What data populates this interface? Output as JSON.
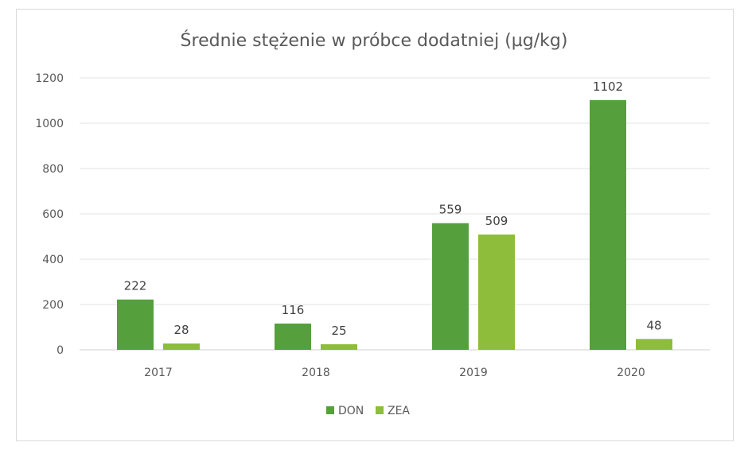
{
  "chart_data": {
    "type": "bar",
    "title": "Średnie stężenie w próbce dodatniej (µg/kg)",
    "categories": [
      "2017",
      "2018",
      "2019",
      "2020"
    ],
    "series": [
      {
        "name": "DON",
        "values": [
          222,
          116,
          559,
          1102
        ],
        "color": "#55a03c"
      },
      {
        "name": "ZEA",
        "values": [
          28,
          25,
          509,
          48
        ],
        "color": "#8dbd3a"
      }
    ],
    "ylim": [
      0,
      1200
    ],
    "yticks": [
      0,
      200,
      400,
      600,
      800,
      1000,
      1200
    ],
    "grid": true,
    "legend": "bottom"
  }
}
